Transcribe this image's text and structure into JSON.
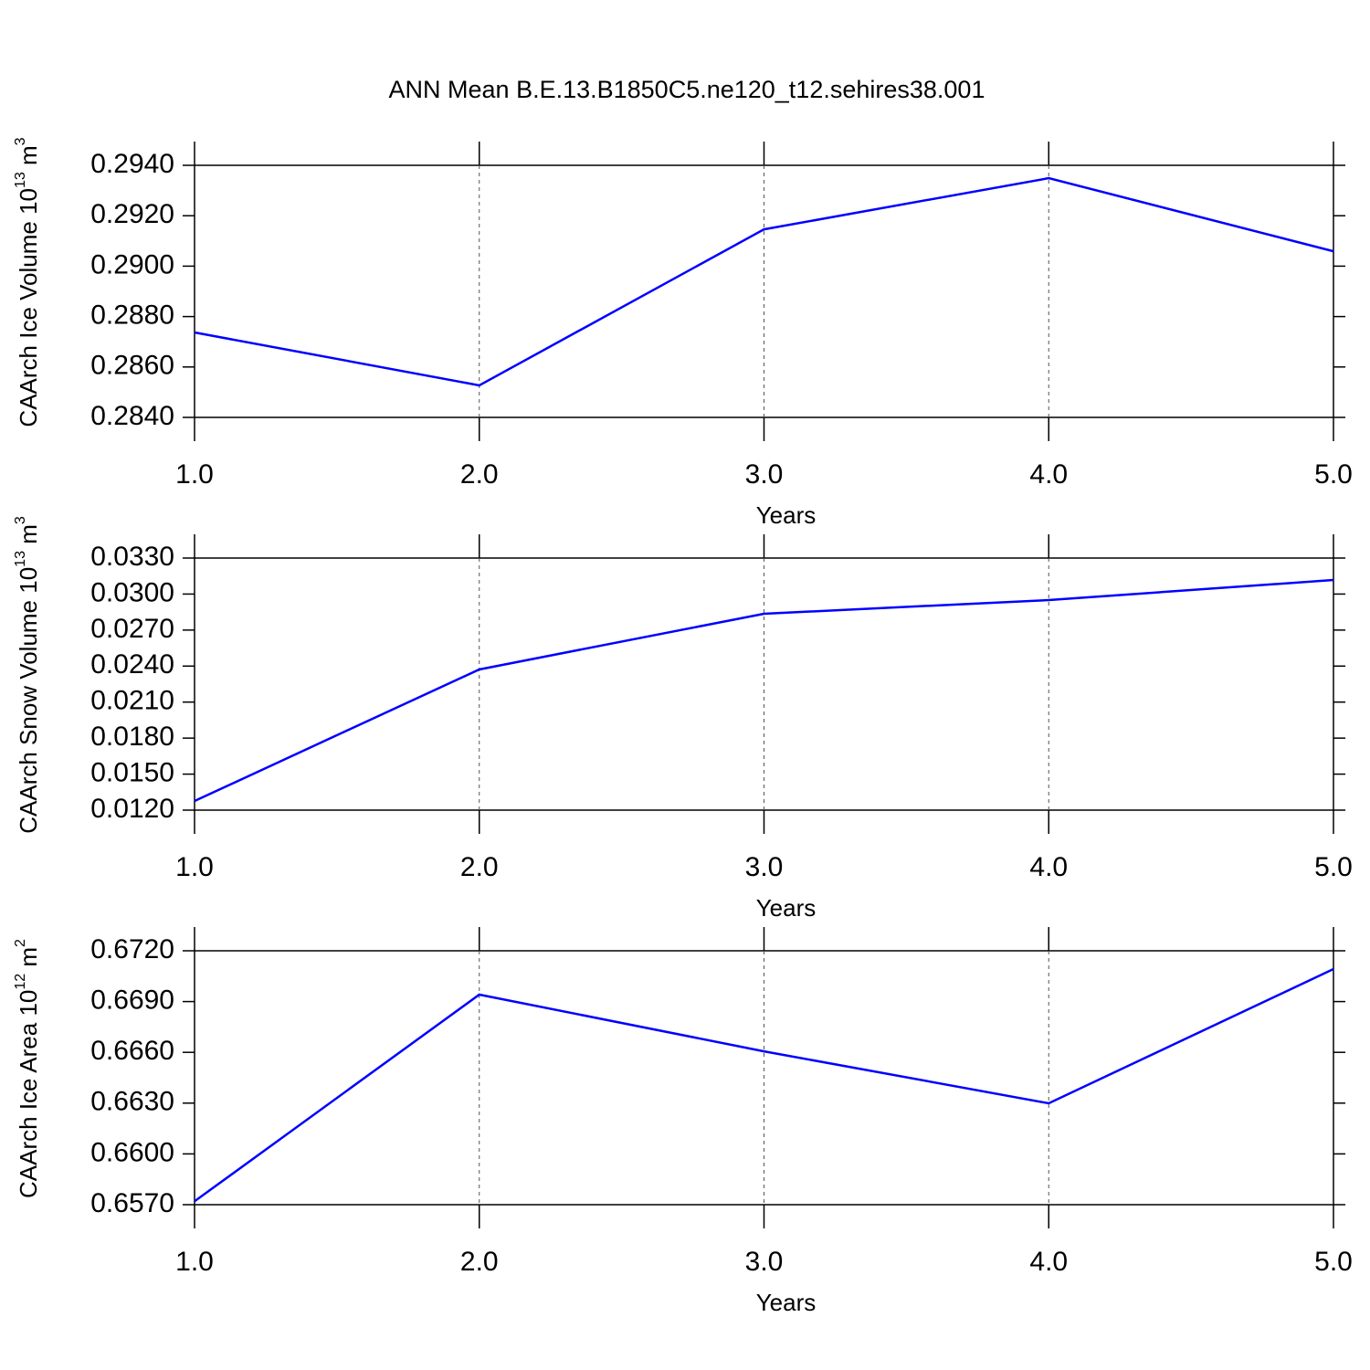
{
  "title": "ANN Mean B.E.13.B1850C5.ne120_t12.sehires38.001",
  "chart_data": [
    {
      "type": "line",
      "xlabel": "Years",
      "ylabel_parts": [
        "CAArch Ice Volume 10",
        "13",
        " m",
        "3"
      ],
      "x": [
        1,
        2,
        3,
        4,
        5
      ],
      "series": [
        {
          "color": "#0000ff",
          "values": [
            0.28737,
            0.28527,
            0.29146,
            0.29349,
            0.29059
          ]
        }
      ],
      "xlim": [
        1,
        5
      ],
      "xticks": [
        {
          "value": 1,
          "label": "1.0"
        },
        {
          "value": 2,
          "label": "2.0"
        },
        {
          "value": 3,
          "label": "3.0"
        },
        {
          "value": 4,
          "label": "4.0"
        },
        {
          "value": 5,
          "label": "5.0"
        }
      ],
      "ylim": [
        0.284,
        0.294
      ],
      "yticks": [
        {
          "value": 0.284,
          "label": "0.2840"
        },
        {
          "value": 0.286,
          "label": "0.2860"
        },
        {
          "value": 0.288,
          "label": "0.2880"
        },
        {
          "value": 0.29,
          "label": "0.2900"
        },
        {
          "value": 0.292,
          "label": "0.2920"
        },
        {
          "value": 0.294,
          "label": "0.2940"
        }
      ],
      "grid": true
    },
    {
      "type": "line",
      "xlabel": "Years",
      "ylabel_parts": [
        "CAArch Snow Volume 10",
        "13",
        " m",
        "3"
      ],
      "x": [
        1,
        2,
        3,
        4,
        5
      ],
      "series": [
        {
          "color": "#0000ff",
          "values": [
            0.01276,
            0.02372,
            0.02836,
            0.0295,
            0.03117
          ]
        }
      ],
      "xlim": [
        1,
        5
      ],
      "xticks": [
        {
          "value": 1,
          "label": "1.0"
        },
        {
          "value": 2,
          "label": "2.0"
        },
        {
          "value": 3,
          "label": "3.0"
        },
        {
          "value": 4,
          "label": "4.0"
        },
        {
          "value": 5,
          "label": "5.0"
        }
      ],
      "ylim": [
        0.012,
        0.033
      ],
      "yticks": [
        {
          "value": 0.012,
          "label": "0.0120"
        },
        {
          "value": 0.015,
          "label": "0.0150"
        },
        {
          "value": 0.018,
          "label": "0.0180"
        },
        {
          "value": 0.021,
          "label": "0.0210"
        },
        {
          "value": 0.024,
          "label": "0.0240"
        },
        {
          "value": 0.027,
          "label": "0.0270"
        },
        {
          "value": 0.03,
          "label": "0.0300"
        },
        {
          "value": 0.033,
          "label": "0.0330"
        }
      ],
      "grid": true
    },
    {
      "type": "line",
      "xlabel": "Years",
      "ylabel_parts": [
        "CAArch Ice Area 10",
        "12",
        " m",
        "2"
      ],
      "x": [
        1,
        2,
        3,
        4,
        5
      ],
      "series": [
        {
          "color": "#0000ff",
          "values": [
            0.6572,
            0.66941,
            0.66606,
            0.66299,
            0.67092
          ]
        }
      ],
      "xlim": [
        1,
        5
      ],
      "xticks": [
        {
          "value": 1,
          "label": "1.0"
        },
        {
          "value": 2,
          "label": "2.0"
        },
        {
          "value": 3,
          "label": "3.0"
        },
        {
          "value": 4,
          "label": "4.0"
        },
        {
          "value": 5,
          "label": "5.0"
        }
      ],
      "ylim": [
        0.657,
        0.672
      ],
      "yticks": [
        {
          "value": 0.657,
          "label": "0.6570"
        },
        {
          "value": 0.66,
          "label": "0.6600"
        },
        {
          "value": 0.663,
          "label": "0.6630"
        },
        {
          "value": 0.666,
          "label": "0.6660"
        },
        {
          "value": 0.669,
          "label": "0.6690"
        },
        {
          "value": 0.672,
          "label": "0.6720"
        }
      ],
      "grid": true
    }
  ]
}
